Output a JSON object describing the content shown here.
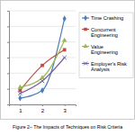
{
  "chart_data": {
    "type": "line",
    "title": "Figure 2– The Impacts of Techniques on Risk Criteria",
    "categories": [
      "1",
      "2",
      "3"
    ],
    "series": [
      {
        "name": "Time Crashing",
        "color": "#4a7ebb",
        "marker": "diamond",
        "values": [
          0.4,
          0.9,
          5.5
        ]
      },
      {
        "name": "Concurrent Engineering",
        "color": "#be4b48",
        "marker": "square",
        "values": [
          0.9,
          2.5,
          3.5
        ]
      },
      {
        "name": "Value Engineering",
        "color": "#98b954",
        "marker": "triangle",
        "values": [
          1.1,
          1.7,
          4.1
        ]
      },
      {
        "name": "Employer's Risk Analysis",
        "color": "#7d60a0",
        "marker": "x",
        "values": [
          0.7,
          1.5,
          3.0
        ]
      }
    ],
    "ylim": [
      0,
      6
    ],
    "yticks": [
      0,
      1,
      2,
      3,
      4,
      5,
      6
    ],
    "grid": true,
    "legend": "right",
    "tick_labels": "x",
    "line_style": "smooth"
  }
}
